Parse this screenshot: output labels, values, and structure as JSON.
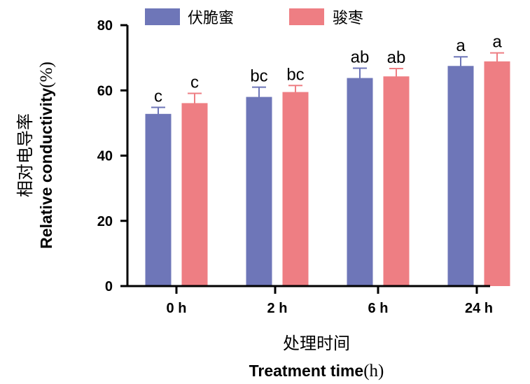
{
  "chart_data": {
    "type": "bar",
    "categories": [
      "0 h",
      "2 h",
      "6 h",
      "24 h"
    ],
    "series": [
      {
        "name": "伏脆蜜",
        "color": "#6e76b8",
        "values": [
          52.8,
          58.0,
          63.8,
          67.5
        ],
        "errors": [
          2.0,
          3.0,
          3.0,
          2.8
        ],
        "labels": [
          "c",
          "bc",
          "ab",
          "a"
        ]
      },
      {
        "name": "骏枣",
        "color": "#ee7e83",
        "values": [
          56.1,
          59.5,
          64.3,
          68.9
        ],
        "errors": [
          3.0,
          2.0,
          2.4,
          2.6
        ],
        "labels": [
          "c",
          "bc",
          "ab",
          "a"
        ]
      }
    ],
    "xlabel_cn": "处理时间",
    "xlabel_en": "Treatment time",
    "xlabel_unit": "(h)",
    "ylabel_cn": "相对电导率",
    "ylabel_en": "Relative conductivity",
    "ylabel_unit": "(%)",
    "ylim": [
      0,
      80
    ],
    "yticks": [
      0,
      20,
      40,
      60,
      80
    ],
    "grid": false,
    "legend_position": "top"
  }
}
